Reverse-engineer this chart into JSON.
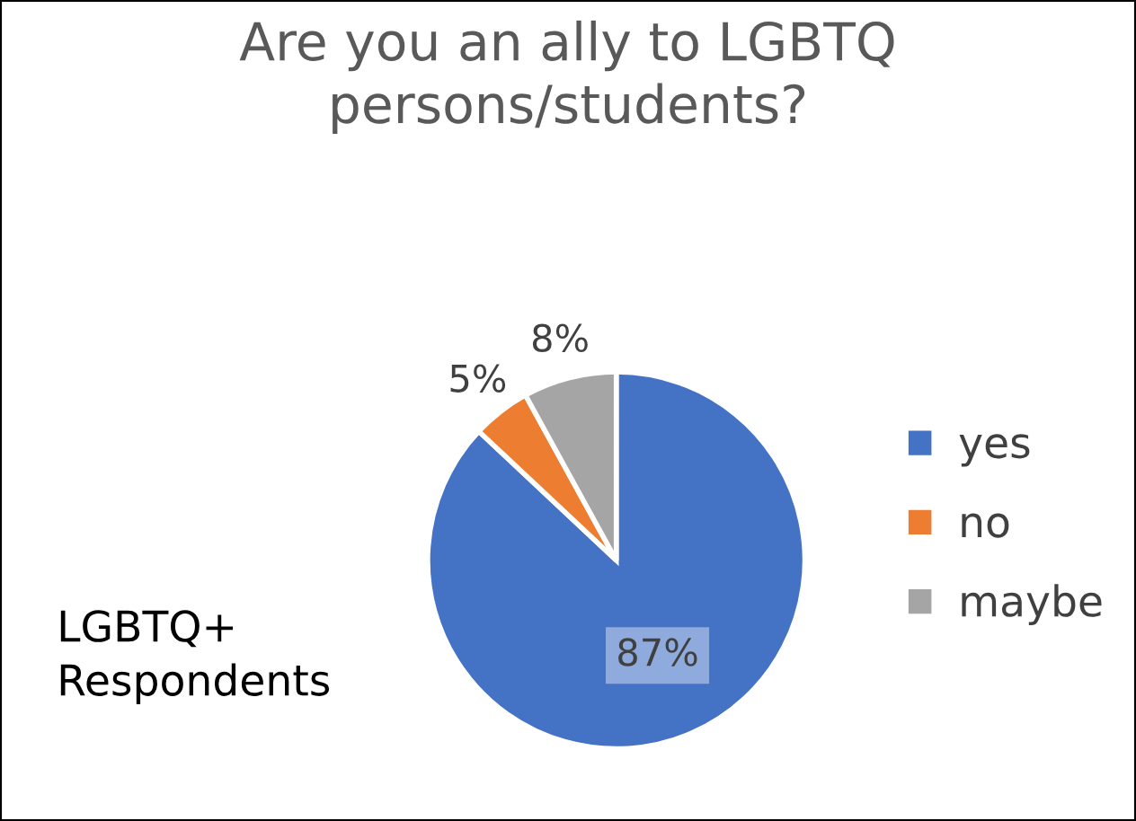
{
  "chart_data": {
    "type": "pie",
    "title": "Are you an ally to LGBTQ\npersons/students?",
    "categories": [
      "yes",
      "no",
      "maybe"
    ],
    "values": [
      87,
      5,
      8
    ],
    "colors": [
      "#4472c4",
      "#ed7d31",
      "#a5a5a5"
    ],
    "value_labels": [
      "87%",
      "5%",
      "8%"
    ],
    "annotations": [
      "LGBTQ+\nRespondents"
    ],
    "legend": "right"
  }
}
